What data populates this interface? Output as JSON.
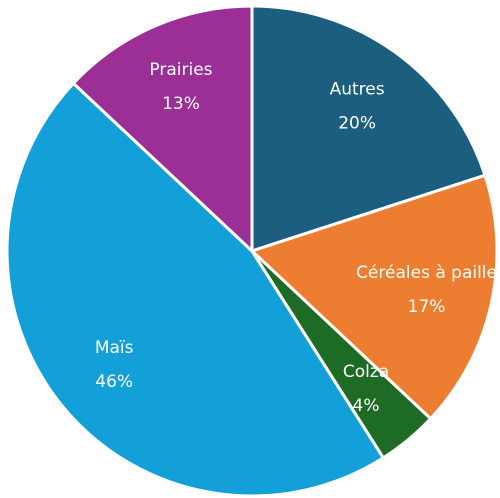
{
  "chart_data": {
    "type": "pie",
    "categories": [
      "Autres",
      "Céréales à paille",
      "Colza",
      "Maïs",
      "Prairies"
    ],
    "values": [
      20,
      17,
      4,
      46,
      13
    ],
    "value_labels": [
      "20%",
      "17%",
      "4%",
      "46%",
      "13%"
    ],
    "colors": [
      "#1b5e80",
      "#ed7d31",
      "#1e6b25",
      "#13a0d9",
      "#9b2f96"
    ]
  }
}
